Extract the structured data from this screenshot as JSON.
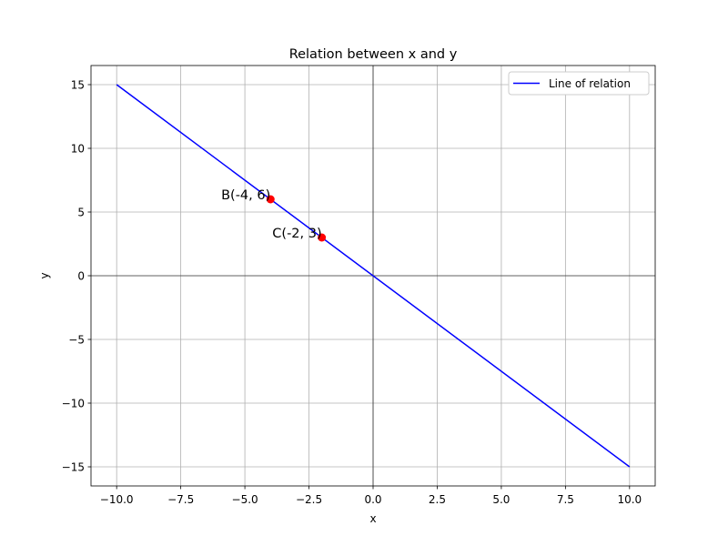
{
  "chart_data": {
    "type": "line",
    "title": "Relation between x and y",
    "xlabel": "x",
    "ylabel": "y",
    "xlim": [
      -11,
      11
    ],
    "ylim": [
      -16.5,
      16.5
    ],
    "x_ticks": [
      -10.0,
      -7.5,
      -5.0,
      -2.5,
      0.0,
      2.5,
      5.0,
      7.5,
      10.0
    ],
    "x_tick_labels": [
      "−10.0",
      "−7.5",
      "−5.0",
      "−2.5",
      "0.0",
      "2.5",
      "5.0",
      "7.5",
      "10.0"
    ],
    "y_ticks": [
      -15,
      -10,
      -5,
      0,
      5,
      10,
      15
    ],
    "y_tick_labels": [
      "−15",
      "−10",
      "−5",
      "0",
      "5",
      "10",
      "15"
    ],
    "grid": true,
    "legend_position": "top-right",
    "series": [
      {
        "name": "Line of relation",
        "color": "#0000ff",
        "x": [
          -10,
          10
        ],
        "y": [
          15,
          -15
        ]
      }
    ],
    "points": [
      {
        "label": "B(-4, 6)",
        "x": -4,
        "y": 6,
        "color": "#ff0000"
      },
      {
        "label": "C(-2, 3)",
        "x": -2,
        "y": 3,
        "color": "#ff0000"
      }
    ],
    "reference_lines": {
      "x0": true,
      "y0": true,
      "color": "#000000"
    }
  }
}
